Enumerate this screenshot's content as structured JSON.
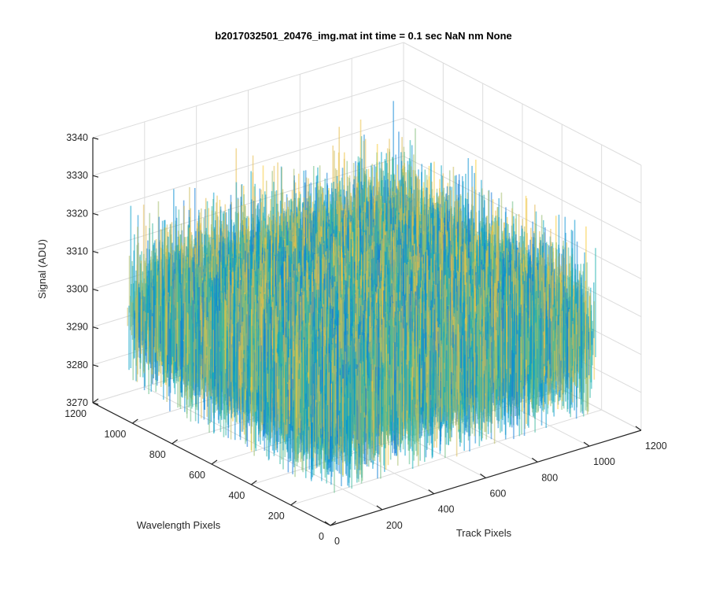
{
  "chart_data": {
    "type": "surface",
    "title": "b2017032501_20476_img.mat int time = 0.1 sec  NaN nm None",
    "xlabel": "Track Pixels",
    "ylabel": "Wavelength Pixels",
    "zlabel": "Signal (ADU)",
    "xlim": [
      0,
      1200
    ],
    "ylim": [
      0,
      1200
    ],
    "zlim": [
      3270,
      3340
    ],
    "x_ticks": [
      "0",
      "200",
      "400",
      "600",
      "800",
      "1000",
      "1200"
    ],
    "y_ticks": [
      "0",
      "200",
      "400",
      "600",
      "800",
      "1000",
      "1200"
    ],
    "z_ticks": [
      "3270",
      "3280",
      "3290",
      "3300",
      "3310",
      "3320",
      "3330",
      "3340"
    ],
    "grid": true,
    "colormap": "parula",
    "surface": {
      "x_range": [
        0,
        1024
      ],
      "y_range": [
        0,
        1024
      ],
      "signal_mean": 3299,
      "signal_spread": [
        3278,
        3335
      ]
    }
  }
}
